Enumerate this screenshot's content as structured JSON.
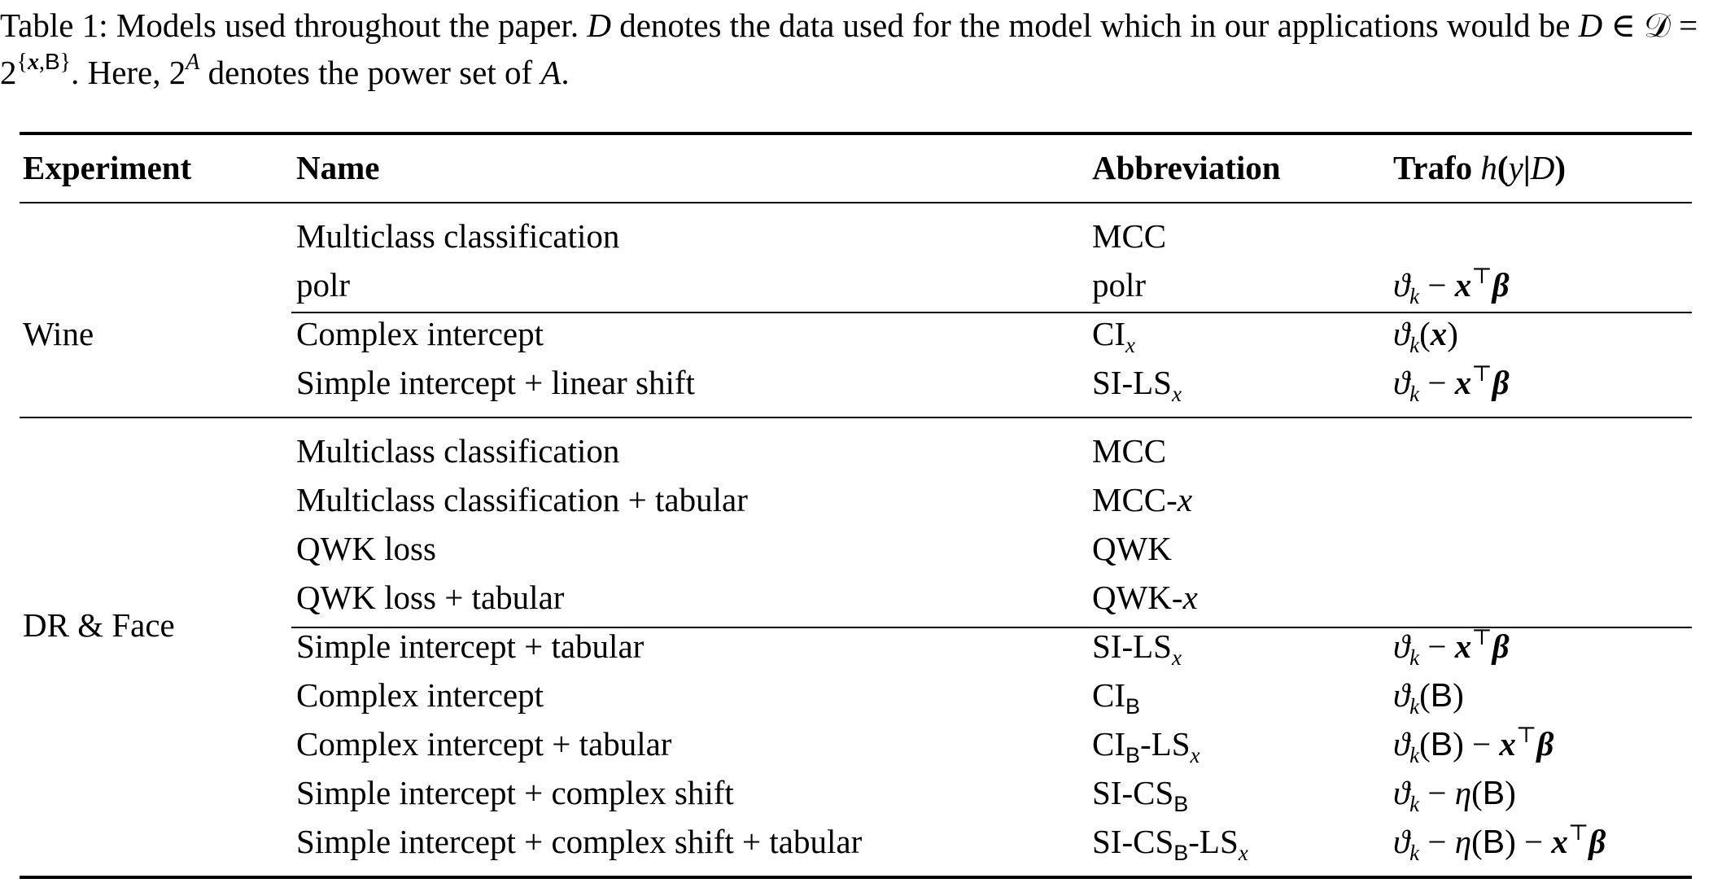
{
  "caption": {
    "lead": "Table 1: Models used throughout the paper.",
    "text_a": "denotes the data used for the model which in our applications would be",
    "text_b": ". Here, 2",
    "text_c": "denotes the power set of"
  },
  "table": {
    "headers": {
      "experiment": "Experiment",
      "name": "Name",
      "abbreviation": "Abbreviation",
      "trafo": "Trafo"
    },
    "groups": [
      {
        "experiment": "Wine"
      },
      {
        "experiment": "DR & Face"
      }
    ],
    "rows": [
      {
        "name": "Multiclass classification",
        "abbr": "MCC"
      },
      {
        "name": "polr",
        "abbr": "polr"
      },
      {
        "name": "Complex intercept",
        "abbr": "CI"
      },
      {
        "name": "Simple intercept + linear shift",
        "abbr": "SI-LS"
      },
      {
        "name": "Multiclass classification",
        "abbr": "MCC"
      },
      {
        "name": "Multiclass classification + tabular",
        "abbr": "MCC-"
      },
      {
        "name": "QWK loss",
        "abbr": "QWK"
      },
      {
        "name": "QWK loss + tabular",
        "abbr": "QWK-"
      },
      {
        "name": "Simple intercept + tabular",
        "abbr": "SI-LS"
      },
      {
        "name": "Complex intercept",
        "abbr": "CI"
      },
      {
        "name": "Complex intercept + tabular",
        "abbr": "CI"
      },
      {
        "name": "Simple intercept + complex shift",
        "abbr": "SI-CS"
      },
      {
        "name": "Simple intercept + complex shift + tabular",
        "abbr": "SI-CS"
      }
    ]
  }
}
